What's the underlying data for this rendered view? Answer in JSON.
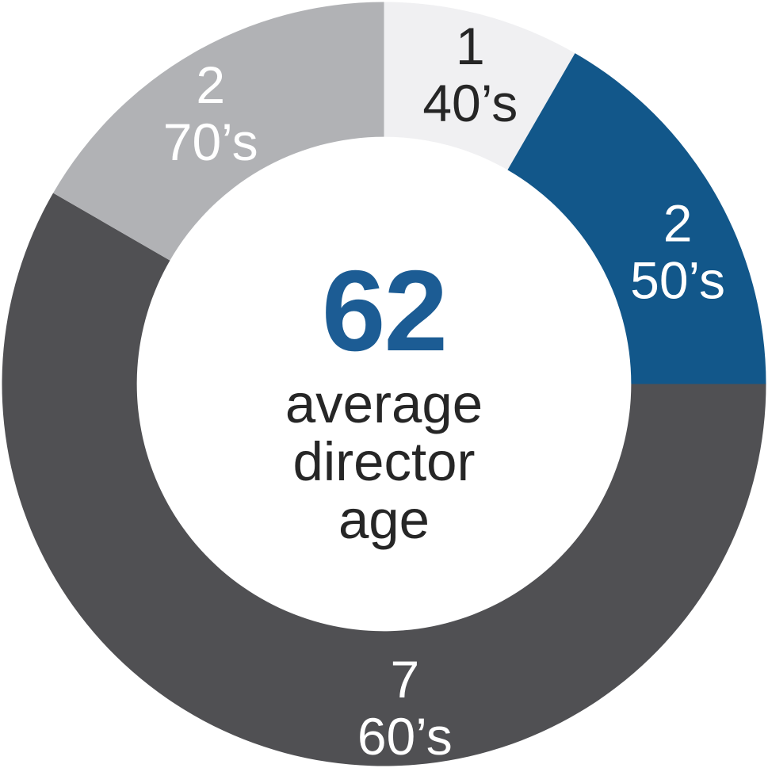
{
  "chart_data": {
    "type": "pie",
    "subtype": "donut",
    "title": "",
    "categories": [
      "40’s",
      "50’s",
      "60’s",
      "70’s"
    ],
    "values": [
      1,
      2,
      7,
      2
    ],
    "total": 12,
    "slices": [
      {
        "label": "40’s",
        "value": 1,
        "color": "#F0F0F2",
        "label_color": "#262626"
      },
      {
        "label": "50’s",
        "value": 2,
        "color": "#12578A",
        "label_color": "#FFFFFF"
      },
      {
        "label": "60’s",
        "value": 7,
        "color": "#505053",
        "label_color": "#FFFFFF"
      },
      {
        "label": "70’s",
        "value": 2,
        "color": "#B1B2B5",
        "label_color": "#FFFFFF"
      }
    ],
    "center": {
      "value": "62",
      "value_color": "#1C5C94",
      "caption_lines": [
        "average",
        "director",
        "age"
      ],
      "caption_color": "#262626"
    },
    "layout": {
      "start_angle_deg": 0,
      "clockwise": true,
      "outer_radius": 482,
      "inner_radius_ratio": 0.647,
      "label_radius_ratio": 0.845,
      "label_angles_deg": [
        15.5,
        65.5,
        176.3,
        327.5
      ],
      "legend": "none",
      "background": "#FFFFFF"
    }
  }
}
